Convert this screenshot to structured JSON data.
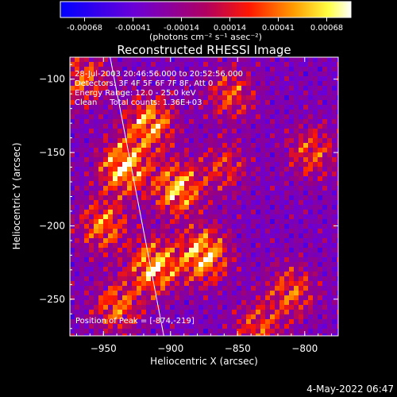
{
  "colorbar": {
    "tick_labels": [
      "-0.00068",
      "-0.00041",
      "-0.00014",
      "0.00014",
      "0.00041",
      "0.00068"
    ],
    "unit_label": "(photons cm⁻² s⁻¹ asec⁻²)"
  },
  "chart_data": {
    "type": "heatmap",
    "title": "Reconstructed RHESSI Image",
    "xlabel": "Heliocentric X (arcsec)",
    "ylabel": "Heliocentric Y (arcsec)",
    "xlim": [
      -975,
      -775
    ],
    "ylim": [
      -275,
      -85
    ],
    "x_ticks": [
      -950,
      -900,
      -850,
      -800
    ],
    "y_ticks": [
      -100,
      -150,
      -200,
      -250
    ],
    "x_tick_labels": [
      "−950",
      "−900",
      "−850",
      "−800"
    ],
    "y_tick_labels": [
      "−100",
      "−150",
      "−200",
      "−250"
    ],
    "colorbar_range": [
      -0.00068,
      0.00068
    ],
    "colormap": "blue-purple-red-orange-yellow-white",
    "annotations": [
      "28-Jul-2003 20:46:56.000 to 20:52:56.000",
      "Detectors: 3F 4F 5F 6F 7F 8F, Att 0",
      "Energy Range: 12.0 - 25.0 keV",
      "Clean     Total counts: 1.36E+03",
      "Position of Peak = [-874,-219]"
    ],
    "peak": [
      -874,
      -219
    ],
    "limb_line": [
      [
        -945,
        -85
      ],
      [
        -905,
        -275
      ]
    ],
    "bright_regions": [
      {
        "x": -935,
        "y": -160,
        "level": 1.0
      },
      {
        "x": -912,
        "y": -228,
        "level": 0.95
      },
      {
        "x": -875,
        "y": -220,
        "level": 1.0
      },
      {
        "x": -915,
        "y": -130,
        "level": 0.85
      },
      {
        "x": -895,
        "y": -175,
        "level": 0.9
      },
      {
        "x": -950,
        "y": -200,
        "level": 0.7
      },
      {
        "x": -940,
        "y": -255,
        "level": 0.65
      },
      {
        "x": -855,
        "y": -110,
        "level": 0.55
      },
      {
        "x": -795,
        "y": -150,
        "level": 0.55
      },
      {
        "x": -810,
        "y": -245,
        "level": 0.6
      },
      {
        "x": -835,
        "y": -270,
        "level": 0.55
      },
      {
        "x": -965,
        "y": -100,
        "level": 0.6
      },
      {
        "x": -860,
        "y": -160,
        "level": 0.45
      }
    ]
  },
  "footer": {
    "timestamp": "4-May-2022 06:47"
  }
}
